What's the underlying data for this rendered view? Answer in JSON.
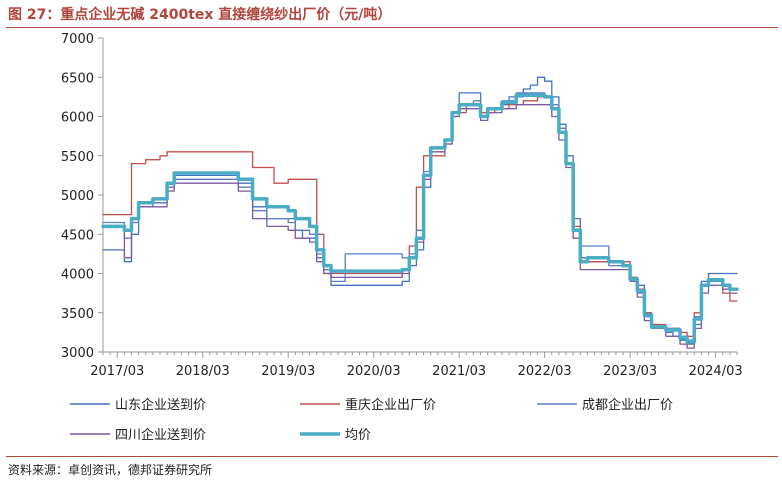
{
  "header": {
    "title": "图 27：重点企业无碱 2400tex 直接缠绕纱出厂价（元/吨）"
  },
  "footer": {
    "source": "资料来源：卓创资讯，德邦证券研究所"
  },
  "colors": {
    "accent": "#b2453c",
    "axis": "#999999"
  },
  "chart_data": {
    "type": "line",
    "title": "",
    "xlabel": "",
    "ylabel": "",
    "ylim": [
      3000,
      7000
    ],
    "xlim": [
      "2017-01",
      "2024-06"
    ],
    "yticks": [
      "3000",
      "3500",
      "4000",
      "4500",
      "5000",
      "5500",
      "6000",
      "6500",
      "7000"
    ],
    "xticks": [
      "2017/03",
      "2018/03",
      "2019/03",
      "2020/03",
      "2021/03",
      "2022/03",
      "2023/03",
      "2024/03"
    ],
    "grid": false,
    "legend_position": "bottom",
    "series": [
      {
        "name": "山东企业送到价",
        "color": "#4472c4",
        "width": 1.3,
        "points": [
          [
            "2017-01",
            4300
          ],
          [
            "2017-03",
            4300
          ],
          [
            "2017-04",
            4150
          ],
          [
            "2017-05",
            4500
          ],
          [
            "2017-06",
            4850
          ],
          [
            "2017-08",
            4900
          ],
          [
            "2017-10",
            5100
          ],
          [
            "2017-11",
            5250
          ],
          [
            "2018-06",
            5250
          ],
          [
            "2018-08",
            5150
          ],
          [
            "2018-10",
            4850
          ],
          [
            "2018-12",
            4700
          ],
          [
            "2019-03",
            4700
          ],
          [
            "2019-04",
            4550
          ],
          [
            "2019-05",
            4450
          ],
          [
            "2019-07",
            4200
          ],
          [
            "2019-08",
            4050
          ],
          [
            "2019-09",
            3850
          ],
          [
            "2020-06",
            3850
          ],
          [
            "2020-07",
            3900
          ],
          [
            "2020-08",
            4100
          ],
          [
            "2020-09",
            4300
          ],
          [
            "2020-10",
            5100
          ],
          [
            "2020-11",
            5600
          ],
          [
            "2021-01",
            5700
          ],
          [
            "2021-02",
            6050
          ],
          [
            "2021-03",
            6300
          ],
          [
            "2021-05",
            6300
          ],
          [
            "2021-06",
            6050
          ],
          [
            "2021-07",
            6100
          ],
          [
            "2021-09",
            6150
          ],
          [
            "2021-10",
            6250
          ],
          [
            "2021-12",
            6350
          ],
          [
            "2022-01",
            6400
          ],
          [
            "2022-02",
            6500
          ],
          [
            "2022-03",
            6450
          ],
          [
            "2022-04",
            6250
          ],
          [
            "2022-05",
            5900
          ],
          [
            "2022-06",
            5500
          ],
          [
            "2022-07",
            4700
          ],
          [
            "2022-08",
            4200
          ],
          [
            "2022-09",
            4150
          ],
          [
            "2022-12",
            4150
          ],
          [
            "2023-02",
            4100
          ],
          [
            "2023-03",
            3950
          ],
          [
            "2023-04",
            3850
          ],
          [
            "2023-05",
            3500
          ],
          [
            "2023-06",
            3350
          ],
          [
            "2023-07",
            3300
          ],
          [
            "2023-08",
            3250
          ],
          [
            "2023-09",
            3200
          ],
          [
            "2023-10",
            3150
          ],
          [
            "2023-11",
            3100
          ],
          [
            "2023-12",
            3350
          ],
          [
            "2024-01",
            3900
          ],
          [
            "2024-02",
            4000
          ],
          [
            "2024-06",
            4000
          ]
        ]
      },
      {
        "name": "重庆企业出厂价",
        "color": "#c0504d",
        "width": 1.3,
        "points": [
          [
            "2017-01",
            4750
          ],
          [
            "2017-04",
            4750
          ],
          [
            "2017-05",
            5400
          ],
          [
            "2017-06",
            5400
          ],
          [
            "2017-07",
            5450
          ],
          [
            "2017-09",
            5500
          ],
          [
            "2017-10",
            5550
          ],
          [
            "2018-06",
            5550
          ],
          [
            "2018-09",
            5550
          ],
          [
            "2018-10",
            5350
          ],
          [
            "2018-12",
            5350
          ],
          [
            "2019-01",
            5150
          ],
          [
            "2019-02",
            5150
          ],
          [
            "2019-03",
            5200
          ],
          [
            "2019-04",
            5200
          ],
          [
            "2019-05",
            5200
          ],
          [
            "2019-06",
            5200
          ],
          [
            "2019-07",
            4500
          ],
          [
            "2019-08",
            4000
          ],
          [
            "2020-06",
            4000
          ],
          [
            "2020-07",
            4050
          ],
          [
            "2020-08",
            4350
          ],
          [
            "2020-09",
            5100
          ],
          [
            "2020-10",
            5500
          ],
          [
            "2021-01",
            5700
          ],
          [
            "2021-02",
            6050
          ],
          [
            "2021-04",
            6150
          ],
          [
            "2021-06",
            6050
          ],
          [
            "2021-08",
            6100
          ],
          [
            "2021-10",
            6150
          ],
          [
            "2021-12",
            6200
          ],
          [
            "2022-02",
            6250
          ],
          [
            "2022-03",
            6250
          ],
          [
            "2022-04",
            6100
          ],
          [
            "2022-05",
            5800
          ],
          [
            "2022-06",
            5400
          ],
          [
            "2022-07",
            4600
          ],
          [
            "2022-08",
            4150
          ],
          [
            "2022-09",
            4150
          ],
          [
            "2022-12",
            4150
          ],
          [
            "2023-02",
            4150
          ],
          [
            "2023-03",
            3950
          ],
          [
            "2023-04",
            3800
          ],
          [
            "2023-05",
            3500
          ],
          [
            "2023-06",
            3350
          ],
          [
            "2023-08",
            3300
          ],
          [
            "2023-10",
            3250
          ],
          [
            "2023-11",
            3200
          ],
          [
            "2023-12",
            3500
          ],
          [
            "2024-01",
            3850
          ],
          [
            "2024-02",
            3900
          ],
          [
            "2024-04",
            3750
          ],
          [
            "2024-05",
            3650
          ],
          [
            "2024-06",
            3650
          ]
        ]
      },
      {
        "name": "成都企业出厂价",
        "color": "#5b7ec5",
        "width": 1.3,
        "points": [
          [
            "2017-01",
            4650
          ],
          [
            "2017-03",
            4650
          ],
          [
            "2017-04",
            4450
          ],
          [
            "2017-05",
            4650
          ],
          [
            "2017-06",
            4900
          ],
          [
            "2017-08",
            4950
          ],
          [
            "2017-10",
            5100
          ],
          [
            "2017-11",
            5200
          ],
          [
            "2018-06",
            5200
          ],
          [
            "2018-08",
            5100
          ],
          [
            "2018-10",
            4800
          ],
          [
            "2018-12",
            4700
          ],
          [
            "2019-03",
            4650
          ],
          [
            "2019-04",
            4550
          ],
          [
            "2019-06",
            4500
          ],
          [
            "2019-07",
            4250
          ],
          [
            "2019-08",
            4050
          ],
          [
            "2019-09",
            3900
          ],
          [
            "2019-11",
            4250
          ],
          [
            "2020-05",
            4250
          ],
          [
            "2020-06",
            4250
          ],
          [
            "2020-07",
            4200
          ],
          [
            "2020-08",
            4250
          ],
          [
            "2020-09",
            4550
          ],
          [
            "2020-10",
            5300
          ],
          [
            "2020-11",
            5600
          ],
          [
            "2021-01",
            5650
          ],
          [
            "2021-02",
            6000
          ],
          [
            "2021-03",
            6150
          ],
          [
            "2021-05",
            6200
          ],
          [
            "2021-06",
            6000
          ],
          [
            "2021-07",
            6100
          ],
          [
            "2021-09",
            6200
          ],
          [
            "2021-11",
            6300
          ],
          [
            "2022-01",
            6300
          ],
          [
            "2022-03",
            6250
          ],
          [
            "2022-04",
            6150
          ],
          [
            "2022-05",
            5850
          ],
          [
            "2022-06",
            5400
          ],
          [
            "2022-07",
            4550
          ],
          [
            "2022-08",
            4350
          ],
          [
            "2022-09",
            4350
          ],
          [
            "2022-12",
            4100
          ],
          [
            "2023-02",
            4100
          ],
          [
            "2023-03",
            3900
          ],
          [
            "2023-04",
            3750
          ],
          [
            "2023-05",
            3450
          ],
          [
            "2023-06",
            3300
          ],
          [
            "2023-08",
            3300
          ],
          [
            "2023-10",
            3200
          ],
          [
            "2023-11",
            3150
          ],
          [
            "2023-12",
            3450
          ],
          [
            "2024-01",
            3850
          ],
          [
            "2024-02",
            3900
          ],
          [
            "2024-04",
            3850
          ],
          [
            "2024-05",
            3800
          ],
          [
            "2024-06",
            3800
          ]
        ]
      },
      {
        "name": "四川企业送到价",
        "color": "#7e5aa2",
        "width": 1.3,
        "points": [
          [
            "2017-01",
            4600
          ],
          [
            "2017-03",
            4600
          ],
          [
            "2017-04",
            4200
          ],
          [
            "2017-05",
            4700
          ],
          [
            "2017-06",
            4850
          ],
          [
            "2017-08",
            4850
          ],
          [
            "2017-10",
            5050
          ],
          [
            "2017-11",
            5150
          ],
          [
            "2018-06",
            5150
          ],
          [
            "2018-08",
            5050
          ],
          [
            "2018-10",
            4700
          ],
          [
            "2018-12",
            4600
          ],
          [
            "2019-03",
            4550
          ],
          [
            "2019-04",
            4450
          ],
          [
            "2019-06",
            4400
          ],
          [
            "2019-07",
            4150
          ],
          [
            "2019-08",
            4000
          ],
          [
            "2019-09",
            3950
          ],
          [
            "2020-06",
            3950
          ],
          [
            "2020-07",
            4000
          ],
          [
            "2020-08",
            4200
          ],
          [
            "2020-09",
            4400
          ],
          [
            "2020-10",
            5200
          ],
          [
            "2020-11",
            5550
          ],
          [
            "2021-01",
            5650
          ],
          [
            "2021-02",
            6000
          ],
          [
            "2021-03",
            6100
          ],
          [
            "2021-05",
            6100
          ],
          [
            "2021-06",
            5950
          ],
          [
            "2021-07",
            6050
          ],
          [
            "2021-09",
            6100
          ],
          [
            "2021-11",
            6150
          ],
          [
            "2022-01",
            6150
          ],
          [
            "2022-03",
            6150
          ],
          [
            "2022-04",
            6000
          ],
          [
            "2022-05",
            5700
          ],
          [
            "2022-06",
            5350
          ],
          [
            "2022-07",
            4450
          ],
          [
            "2022-08",
            4050
          ],
          [
            "2022-09",
            4050
          ],
          [
            "2022-12",
            4050
          ],
          [
            "2023-02",
            4050
          ],
          [
            "2023-03",
            3900
          ],
          [
            "2023-04",
            3700
          ],
          [
            "2023-05",
            3400
          ],
          [
            "2023-06",
            3300
          ],
          [
            "2023-08",
            3200
          ],
          [
            "2023-10",
            3100
          ],
          [
            "2023-11",
            3050
          ],
          [
            "2023-12",
            3300
          ],
          [
            "2024-01",
            3750
          ],
          [
            "2024-02",
            3850
          ],
          [
            "2024-04",
            3800
          ],
          [
            "2024-05",
            3750
          ],
          [
            "2024-06",
            3750
          ]
        ]
      },
      {
        "name": "均价",
        "color": "#4bacc6",
        "width": 3.5,
        "points": [
          [
            "2017-01",
            4600
          ],
          [
            "2017-03",
            4600
          ],
          [
            "2017-04",
            4550
          ],
          [
            "2017-05",
            4700
          ],
          [
            "2017-06",
            4900
          ],
          [
            "2017-08",
            4950
          ],
          [
            "2017-10",
            5150
          ],
          [
            "2017-11",
            5280
          ],
          [
            "2018-06",
            5280
          ],
          [
            "2018-08",
            5200
          ],
          [
            "2018-10",
            4950
          ],
          [
            "2018-12",
            4850
          ],
          [
            "2019-03",
            4800
          ],
          [
            "2019-04",
            4700
          ],
          [
            "2019-06",
            4600
          ],
          [
            "2019-07",
            4300
          ],
          [
            "2019-08",
            4100
          ],
          [
            "2019-09",
            4030
          ],
          [
            "2020-06",
            4030
          ],
          [
            "2020-07",
            4050
          ],
          [
            "2020-08",
            4200
          ],
          [
            "2020-09",
            4450
          ],
          [
            "2020-10",
            5250
          ],
          [
            "2020-11",
            5600
          ],
          [
            "2021-01",
            5700
          ],
          [
            "2021-02",
            6050
          ],
          [
            "2021-03",
            6150
          ],
          [
            "2021-05",
            6150
          ],
          [
            "2021-06",
            6000
          ],
          [
            "2021-07",
            6100
          ],
          [
            "2021-09",
            6180
          ],
          [
            "2021-11",
            6270
          ],
          [
            "2022-01",
            6270
          ],
          [
            "2022-03",
            6250
          ],
          [
            "2022-04",
            6100
          ],
          [
            "2022-05",
            5800
          ],
          [
            "2022-06",
            5400
          ],
          [
            "2022-07",
            4550
          ],
          [
            "2022-08",
            4150
          ],
          [
            "2022-09",
            4200
          ],
          [
            "2022-12",
            4150
          ],
          [
            "2023-02",
            4100
          ],
          [
            "2023-03",
            3930
          ],
          [
            "2023-04",
            3780
          ],
          [
            "2023-05",
            3470
          ],
          [
            "2023-06",
            3320
          ],
          [
            "2023-08",
            3280
          ],
          [
            "2023-10",
            3180
          ],
          [
            "2023-11",
            3130
          ],
          [
            "2023-12",
            3420
          ],
          [
            "2024-01",
            3850
          ],
          [
            "2024-02",
            3920
          ],
          [
            "2024-04",
            3850
          ],
          [
            "2024-05",
            3800
          ],
          [
            "2024-06",
            3800
          ]
        ]
      }
    ]
  }
}
